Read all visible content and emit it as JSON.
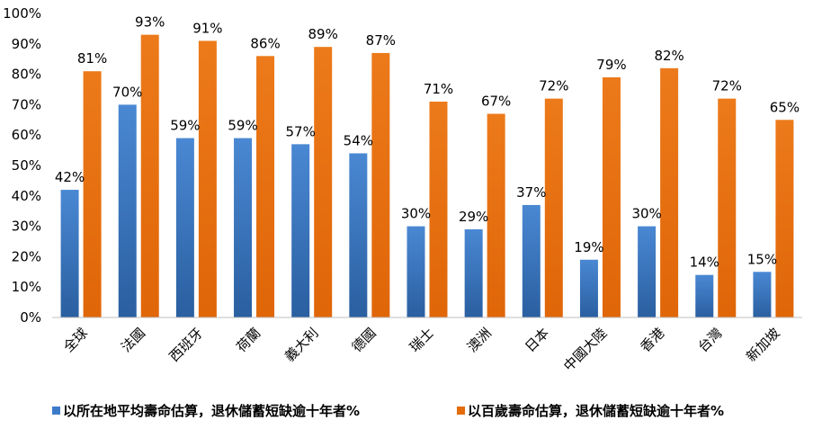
{
  "chart_data": {
    "type": "bar",
    "categories": [
      "全球",
      "法國",
      "西班牙",
      "荷蘭",
      "義大利",
      "德國",
      "瑞士",
      "澳洲",
      "日本",
      "中國大陸",
      "香港",
      "台灣",
      "新加坡"
    ],
    "series": [
      {
        "name": "以所在地平均壽命估算，退休儲蓄短缺逾十年者%",
        "color": "#3d7bc8",
        "values": [
          42,
          70,
          59,
          59,
          57,
          54,
          30,
          29,
          37,
          19,
          30,
          14,
          15
        ],
        "labels": [
          "42%",
          "70%",
          "59%",
          "59%",
          "57%",
          "54%",
          "30%",
          "29%",
          "37%",
          "19%",
          "30%",
          "14%",
          "15%"
        ]
      },
      {
        "name": "以百歲壽命估算，退休儲蓄短缺逾十年者%",
        "color": "#e46c0a",
        "values": [
          81,
          93,
          91,
          86,
          89,
          87,
          71,
          67,
          72,
          79,
          82,
          72,
          65
        ],
        "labels": [
          "81%",
          "93%",
          "91%",
          "86%",
          "89%",
          "87%",
          "71%",
          "67%",
          "72%",
          "79%",
          "82%",
          "72%",
          "65%"
        ]
      }
    ],
    "yticks": [
      0,
      10,
      20,
      30,
      40,
      50,
      60,
      70,
      80,
      90,
      100
    ],
    "ytick_labels": [
      "0%",
      "10%",
      "20%",
      "30%",
      "40%",
      "50%",
      "60%",
      "70%",
      "80%",
      "90%",
      "100%"
    ],
    "ylim": [
      0,
      100
    ],
    "grid": false,
    "legend_position": "bottom",
    "title": "",
    "xlabel": "",
    "ylabel": ""
  }
}
